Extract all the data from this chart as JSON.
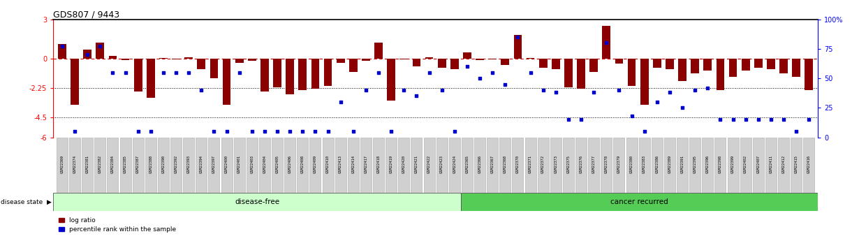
{
  "title": "GDS807 / 9443",
  "samples": [
    "GSM22369",
    "GSM22374",
    "GSM22381",
    "GSM22382",
    "GSM22384",
    "GSM22385",
    "GSM22387",
    "GSM22388",
    "GSM22390",
    "GSM22392",
    "GSM22393",
    "GSM22394",
    "GSM22397",
    "GSM22400",
    "GSM22401",
    "GSM22403",
    "GSM22404",
    "GSM22405",
    "GSM22406",
    "GSM22408",
    "GSM22409",
    "GSM22410",
    "GSM22413",
    "GSM22414",
    "GSM22417",
    "GSM22418",
    "GSM22419",
    "GSM22420",
    "GSM22421",
    "GSM22422",
    "GSM22423",
    "GSM22424",
    "GSM22365",
    "GSM22366",
    "GSM22367",
    "GSM22368",
    "GSM22370",
    "GSM22371",
    "GSM22372",
    "GSM22373",
    "GSM22375",
    "GSM22376",
    "GSM22377",
    "GSM22378",
    "GSM22379",
    "GSM22380",
    "GSM22383",
    "GSM22386",
    "GSM22389",
    "GSM22391",
    "GSM22395",
    "GSM22396",
    "GSM22398",
    "GSM22399",
    "GSM22402",
    "GSM22407",
    "GSM22411",
    "GSM22412",
    "GSM22415",
    "GSM22416"
  ],
  "log_ratio": [
    1.1,
    -3.5,
    0.7,
    1.2,
    0.2,
    -0.1,
    -2.5,
    -3.0,
    0.05,
    -0.05,
    0.1,
    -0.8,
    -1.5,
    -3.5,
    -0.3,
    -0.15,
    -2.5,
    -2.2,
    -2.7,
    -2.4,
    -2.3,
    -2.1,
    -0.3,
    -1.0,
    -0.15,
    1.2,
    -3.2,
    -0.05,
    -0.6,
    0.1,
    -0.7,
    -0.8,
    0.5,
    -0.1,
    -0.05,
    -0.5,
    1.8,
    0.05,
    -0.7,
    -0.8,
    -2.2,
    -2.3,
    -1.0,
    2.5,
    -0.4,
    -2.1,
    -3.5,
    -0.7,
    -0.8,
    -1.7,
    -1.1,
    -0.9,
    -2.4,
    -1.4,
    -0.9,
    -0.7,
    -0.8,
    -1.1,
    -1.4,
    -2.4
  ],
  "percentile": [
    77,
    5,
    70,
    77,
    55,
    55,
    5,
    5,
    55,
    55,
    55,
    40,
    5,
    5,
    55,
    5,
    5,
    5,
    5,
    5,
    5,
    5,
    30,
    5,
    40,
    55,
    5,
    40,
    35,
    55,
    40,
    5,
    60,
    50,
    55,
    45,
    85,
    55,
    40,
    38,
    15,
    15,
    38,
    80,
    40,
    18,
    5,
    30,
    38,
    25,
    40,
    42,
    15,
    15,
    15,
    15,
    15,
    15,
    5,
    15
  ],
  "disease_free_count": 32,
  "cancer_recurred_count": 28,
  "ylim_left": [
    -6,
    3
  ],
  "ylim_right": [
    0,
    100
  ],
  "yticks_left": [
    3,
    0,
    -2.25,
    -4.5,
    -6
  ],
  "ytick_labels_left": [
    "3",
    "0",
    "-2.25",
    "-4.5",
    "-6"
  ],
  "yticks_right": [
    0,
    25,
    50,
    75,
    100
  ],
  "ytick_labels_right": [
    "0",
    "25",
    "50",
    "75",
    "100%"
  ],
  "hlines": [
    -4.5,
    -2.25
  ],
  "bar_color": "#8B0000",
  "scatter_color": "#0000CD",
  "zero_line_color": "#CC0000",
  "disease_free_color": "#ccffcc",
  "cancer_recurred_color": "#55cc55",
  "label_band_color": "#d0d0d0",
  "label_band_border": "#aaaaaa",
  "annot_border_color": "#555555"
}
